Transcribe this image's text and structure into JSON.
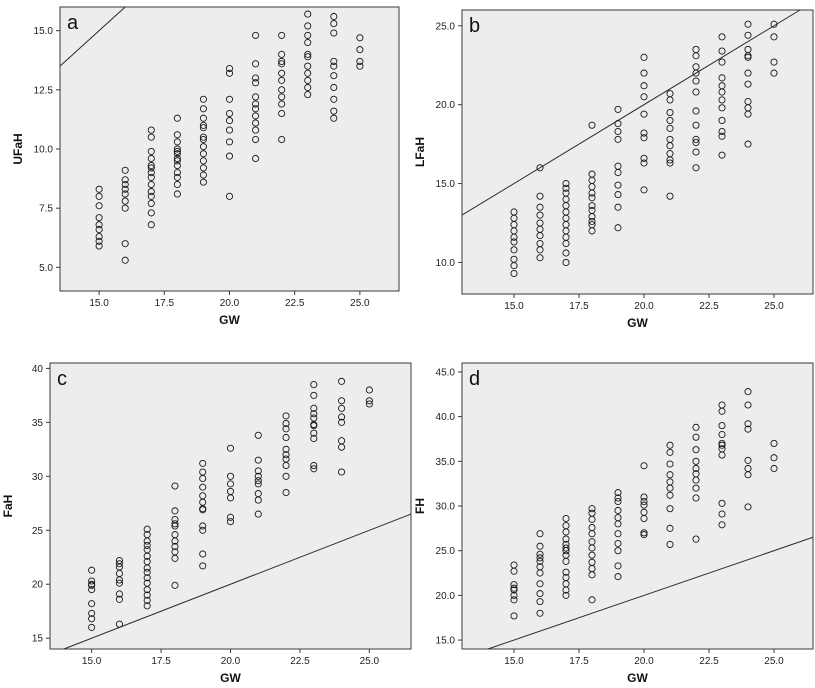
{
  "chart_data": [
    {
      "type": "scatter",
      "panel_label": "a",
      "xlabel": "GW",
      "ylabel": "UFaH",
      "xlim": [
        13.5,
        26.5
      ],
      "ylim": [
        4.0,
        16.0
      ],
      "xticks": [
        "15.0",
        "17.5",
        "20.0",
        "22.5",
        "25.0"
      ],
      "yticks": [
        "5.0",
        "7.5",
        "10.0",
        "12.5",
        "15.0"
      ],
      "reference_line": "identity (y = x)",
      "points": {
        "x": [
          15,
          15,
          15,
          15,
          15,
          15,
          15,
          15,
          15,
          16,
          16,
          16,
          16,
          16,
          16,
          16,
          16,
          16,
          17,
          17,
          17,
          17,
          17,
          17,
          17,
          17,
          17,
          17,
          17,
          17,
          17,
          17,
          18,
          18,
          18,
          18,
          18,
          18,
          18,
          18,
          18,
          18,
          18,
          18,
          18,
          19,
          19,
          19,
          19,
          19,
          19,
          19,
          19,
          19,
          19,
          19,
          19,
          19,
          20,
          20,
          20,
          20,
          20,
          20,
          20,
          20,
          20,
          21,
          21,
          21,
          21,
          21,
          21,
          21,
          21,
          21,
          21,
          21,
          21,
          22,
          22,
          22,
          22,
          22,
          22,
          22,
          22,
          22,
          22,
          22,
          23,
          23,
          23,
          23,
          23,
          23,
          23,
          23,
          23,
          23,
          23,
          24,
          24,
          24,
          24,
          24,
          24,
          24,
          24,
          24,
          24,
          25,
          25,
          25,
          25
        ],
        "y": [
          8.3,
          8.0,
          7.6,
          7.1,
          6.8,
          6.6,
          6.3,
          6.1,
          5.9,
          9.1,
          8.7,
          8.3,
          8.1,
          7.8,
          7.5,
          6.0,
          5.3,
          8.5,
          10.8,
          10.5,
          9.9,
          9.6,
          9.3,
          9.0,
          8.8,
          8.5,
          8.2,
          8.0,
          7.7,
          7.3,
          6.8,
          9.2,
          11.3,
          10.6,
          10.3,
          10.0,
          9.8,
          9.5,
          9.3,
          9.0,
          8.8,
          8.5,
          8.1,
          9.6,
          9.9,
          12.1,
          11.7,
          11.3,
          10.9,
          10.4,
          10.1,
          9.8,
          9.5,
          9.2,
          8.9,
          8.6,
          11.0,
          10.5,
          13.4,
          13.2,
          12.1,
          11.5,
          11.2,
          10.8,
          10.3,
          9.7,
          8.0,
          14.8,
          13.6,
          12.8,
          12.2,
          11.7,
          11.4,
          11.1,
          10.8,
          10.4,
          9.6,
          11.9,
          13.0,
          14.8,
          14.0,
          13.6,
          13.2,
          12.9,
          12.5,
          12.2,
          11.9,
          11.5,
          10.4,
          13.7,
          15.7,
          15.2,
          14.8,
          14.5,
          14.0,
          13.5,
          13.2,
          12.9,
          12.6,
          12.3,
          13.9,
          15.6,
          15.3,
          14.9,
          13.7,
          13.5,
          13.1,
          12.6,
          12.1,
          11.6,
          11.3,
          14.7,
          14.2,
          13.7,
          13.5
        ]
      }
    },
    {
      "type": "scatter",
      "panel_label": "b",
      "xlabel": "GW",
      "ylabel": "LFaH",
      "xlim": [
        13.0,
        26.5
      ],
      "ylim": [
        8.0,
        26.0
      ],
      "xticks": [
        "15.0",
        "17.5",
        "20.0",
        "22.5",
        "25.0"
      ],
      "yticks": [
        "10.0",
        "15.0",
        "20.0",
        "25.0"
      ],
      "reference_line": "identity (y = x)",
      "points": {
        "x": [
          15,
          15,
          15,
          15,
          15,
          15,
          15,
          15,
          15,
          15,
          16,
          16,
          16,
          16,
          16,
          16,
          16,
          16,
          16,
          16,
          17,
          17,
          17,
          17,
          17,
          17,
          17,
          17,
          17,
          17,
          17,
          17,
          17,
          18,
          18,
          18,
          18,
          18,
          18,
          18,
          18,
          18,
          18,
          18,
          18,
          19,
          19,
          19,
          19,
          19,
          19,
          19,
          19,
          19,
          19,
          20,
          20,
          20,
          20,
          20,
          20,
          20,
          20,
          20,
          20,
          21,
          21,
          21,
          21,
          21,
          21,
          21,
          21,
          21,
          21,
          21,
          22,
          22,
          22,
          22,
          22,
          22,
          22,
          22,
          22,
          22,
          22,
          22,
          23,
          23,
          23,
          23,
          23,
          23,
          23,
          23,
          23,
          23,
          23,
          23,
          24,
          24,
          24,
          24,
          24,
          24,
          24,
          24,
          24,
          24,
          24,
          25,
          25,
          25,
          25
        ],
        "y": [
          13.2,
          12.8,
          12.4,
          12.0,
          11.6,
          11.3,
          10.8,
          10.2,
          9.8,
          9.3,
          16.0,
          14.2,
          13.5,
          13.0,
          12.5,
          12.1,
          11.7,
          11.2,
          10.8,
          10.3,
          15.0,
          14.7,
          14.4,
          14.0,
          13.6,
          13.2,
          12.8,
          12.4,
          12.0,
          11.6,
          11.2,
          10.6,
          10.0,
          18.7,
          15.6,
          15.2,
          14.8,
          14.4,
          14.1,
          13.6,
          13.3,
          12.9,
          12.4,
          12.0,
          12.6,
          19.7,
          18.8,
          18.3,
          17.8,
          16.1,
          15.7,
          14.9,
          14.3,
          13.5,
          12.2,
          23.0,
          22.0,
          21.2,
          20.5,
          19.4,
          18.2,
          17.9,
          16.6,
          16.3,
          14.6,
          20.7,
          20.3,
          19.5,
          19.0,
          18.5,
          17.8,
          17.4,
          16.9,
          16.3,
          14.2,
          16.5,
          23.1,
          22.4,
          22.0,
          21.5,
          20.8,
          19.6,
          18.7,
          17.8,
          17.6,
          17.0,
          16.0,
          23.5,
          24.3,
          23.4,
          22.7,
          21.7,
          21.2,
          20.8,
          20.3,
          19.8,
          19.0,
          18.3,
          16.8,
          18.0,
          25.1,
          24.4,
          23.5,
          23.1,
          22.0,
          21.3,
          20.2,
          19.8,
          19.4,
          17.5,
          23.0,
          25.1,
          24.3,
          22.7,
          22.0
        ]
      }
    },
    {
      "type": "scatter",
      "panel_label": "c",
      "xlabel": "GW",
      "ylabel": "FaH",
      "xlim": [
        13.5,
        26.5
      ],
      "ylim": [
        14.0,
        40.5
      ],
      "xticks": [
        "15.0",
        "17.5",
        "20.0",
        "22.5",
        "25.0"
      ],
      "yticks": [
        "15",
        "20",
        "25",
        "30",
        "35",
        "40"
      ],
      "reference_line": "identity (y = x)",
      "points": {
        "x": [
          15,
          15,
          15,
          15,
          15,
          15,
          15,
          15,
          15,
          16,
          16,
          16,
          16,
          16,
          16,
          16,
          16,
          16,
          17,
          17,
          17,
          17,
          17,
          17,
          17,
          17,
          17,
          17,
          17,
          17,
          17,
          17,
          17,
          18,
          18,
          18,
          18,
          18,
          18,
          18,
          18,
          18,
          18,
          18,
          19,
          19,
          19,
          19,
          19,
          19,
          19,
          19,
          19,
          19,
          19,
          19,
          20,
          20,
          20,
          20,
          20,
          20,
          20,
          21,
          21,
          21,
          21,
          21,
          21,
          21,
          21,
          21,
          22,
          22,
          22,
          22,
          22,
          22,
          22,
          22,
          22,
          22,
          23,
          23,
          23,
          23,
          23,
          23,
          23,
          23,
          23,
          23,
          23,
          24,
          24,
          24,
          24,
          24,
          24,
          24,
          24,
          25,
          25,
          25
        ],
        "y": [
          21.3,
          20.3,
          19.9,
          19.5,
          18.2,
          17.3,
          16.8,
          16.0,
          20.0,
          22.2,
          21.6,
          21.0,
          20.4,
          20.1,
          19.1,
          18.6,
          16.3,
          21.9,
          25.1,
          24.6,
          24.0,
          23.2,
          22.6,
          22.1,
          21.5,
          21.1,
          20.6,
          20.1,
          19.5,
          19.0,
          18.5,
          18.0,
          23.6,
          29.1,
          26.8,
          26.0,
          25.4,
          24.6,
          24.0,
          23.5,
          23.0,
          22.4,
          19.9,
          25.6,
          31.2,
          30.4,
          29.8,
          29.0,
          28.2,
          27.6,
          26.9,
          25.4,
          25.0,
          22.8,
          21.7,
          27.0,
          32.6,
          30.0,
          29.3,
          28.6,
          28.0,
          26.2,
          25.8,
          33.8,
          31.5,
          30.5,
          30.0,
          29.3,
          28.4,
          27.8,
          26.5,
          29.6,
          35.6,
          34.9,
          34.4,
          32.5,
          32.0,
          31.6,
          31.0,
          28.5,
          33.6,
          30.0,
          38.5,
          37.5,
          36.3,
          35.4,
          34.7,
          34.0,
          33.5,
          31.0,
          30.7,
          35.8,
          34.8,
          38.8,
          37.0,
          36.3,
          35.5,
          35.0,
          33.3,
          32.7,
          30.4,
          38.0,
          37.0,
          36.7
        ]
      }
    },
    {
      "type": "scatter",
      "panel_label": "d",
      "xlabel": "GW",
      "ylabel": "FH",
      "xlim": [
        13.0,
        26.5
      ],
      "ylim": [
        14.0,
        46.0
      ],
      "xticks": [
        "15.0",
        "17.5",
        "20.0",
        "22.5",
        "25.0"
      ],
      "yticks": [
        "15.0",
        "20.0",
        "25.0",
        "30.0",
        "35.0",
        "40.0",
        "45.0"
      ],
      "reference_line": "identity (y = x)",
      "points": {
        "x": [
          15,
          15,
          15,
          15,
          15,
          15,
          15,
          15,
          16,
          16,
          16,
          16,
          16,
          16,
          16,
          16,
          16,
          16,
          16,
          17,
          17,
          17,
          17,
          17,
          17,
          17,
          17,
          17,
          17,
          17,
          17,
          17,
          17,
          18,
          18,
          18,
          18,
          18,
          18,
          18,
          18,
          18,
          18,
          18,
          18,
          19,
          19,
          19,
          19,
          19,
          19,
          19,
          19,
          19,
          19,
          19,
          20,
          20,
          20,
          20,
          20,
          20,
          20,
          20,
          21,
          21,
          21,
          21,
          21,
          21,
          21,
          21,
          21,
          21,
          22,
          22,
          22,
          22,
          22,
          22,
          22,
          22,
          22,
          22,
          23,
          23,
          23,
          23,
          23,
          23,
          23,
          23,
          23,
          23,
          23,
          24,
          24,
          24,
          24,
          24,
          24,
          24,
          24,
          25,
          25,
          25
        ],
        "y": [
          23.4,
          22.7,
          21.2,
          20.6,
          20.0,
          19.5,
          17.7,
          20.8,
          26.9,
          25.5,
          24.2,
          23.8,
          23.2,
          22.5,
          21.3,
          20.2,
          19.3,
          18.0,
          24.6,
          28.6,
          27.8,
          27.1,
          26.3,
          25.7,
          25.0,
          24.5,
          23.8,
          22.6,
          22.0,
          21.3,
          20.6,
          20.0,
          25.3,
          29.7,
          28.5,
          27.6,
          26.9,
          26.0,
          25.3,
          24.5,
          23.7,
          23.0,
          22.3,
          19.5,
          29.2,
          31.5,
          30.5,
          29.5,
          28.7,
          28.0,
          26.9,
          25.8,
          25.0,
          23.3,
          22.1,
          30.9,
          34.5,
          31.0,
          30.1,
          29.3,
          28.6,
          27.0,
          26.8,
          30.5,
          36.8,
          36.0,
          34.7,
          33.5,
          32.7,
          32.0,
          31.2,
          29.7,
          27.5,
          25.7,
          38.8,
          37.7,
          36.3,
          35.0,
          34.2,
          33.6,
          32.9,
          32.0,
          30.9,
          26.3,
          41.3,
          40.6,
          39.0,
          38.0,
          37.0,
          36.4,
          35.7,
          30.3,
          29.1,
          27.9,
          36.8,
          42.8,
          41.3,
          39.2,
          38.6,
          35.1,
          34.2,
          33.5,
          29.9,
          37.0,
          35.4,
          34.2
        ]
      }
    }
  ]
}
